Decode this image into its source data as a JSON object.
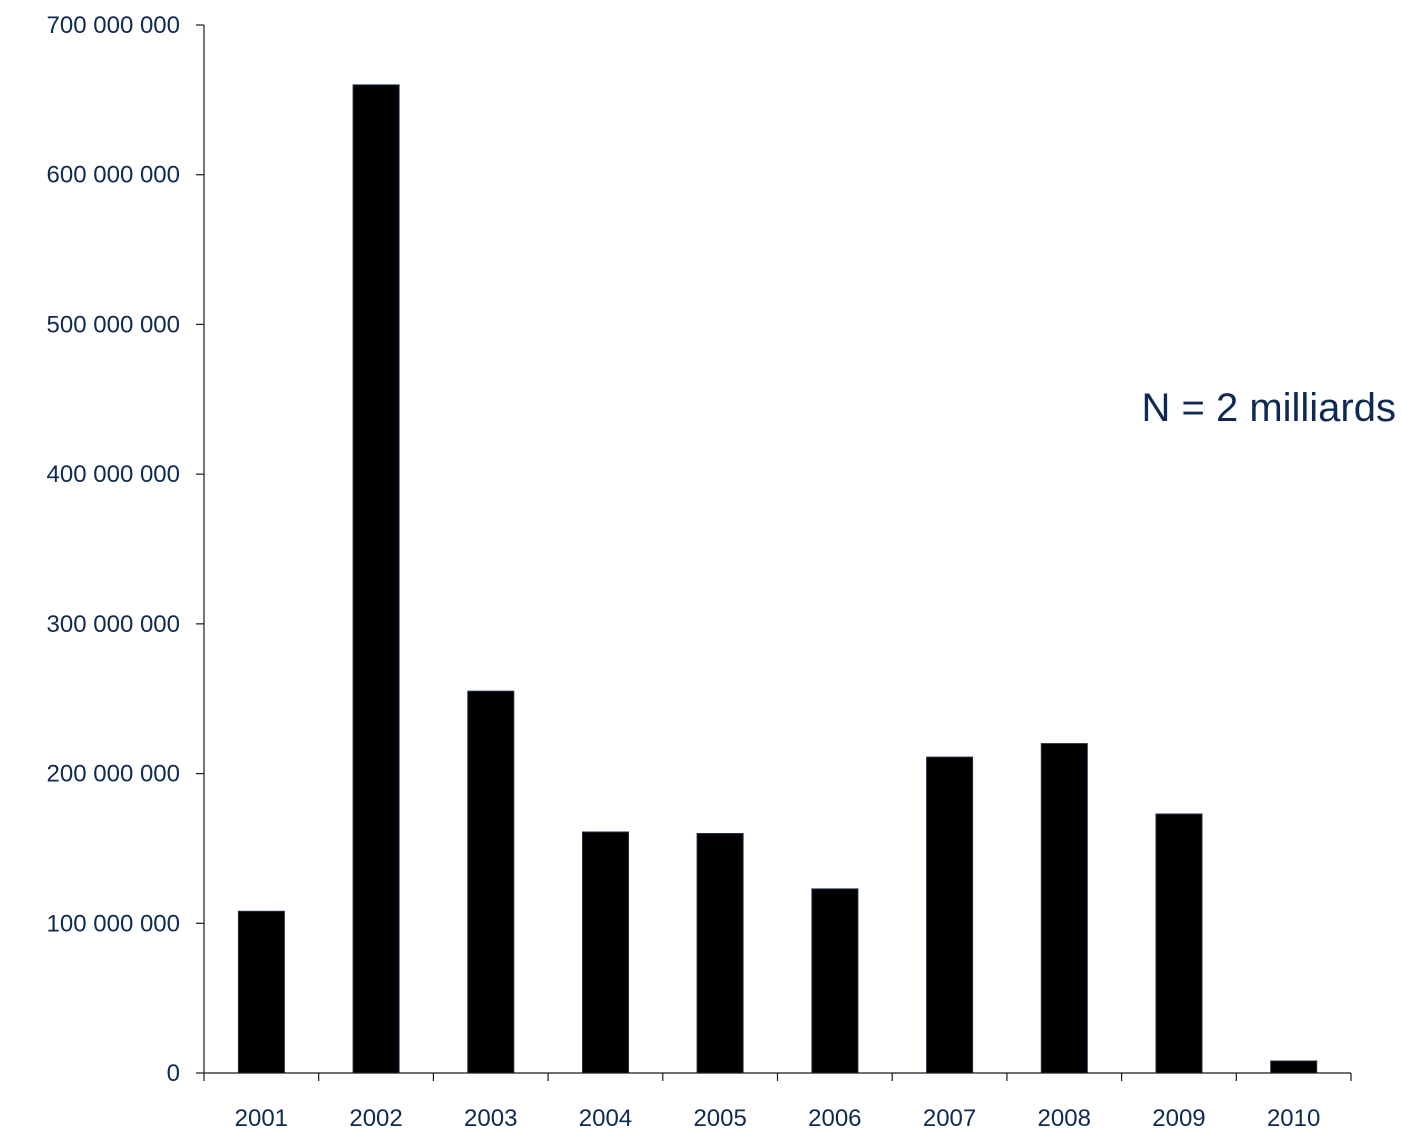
{
  "chart_data": {
    "type": "bar",
    "categories": [
      "2001",
      "2002",
      "2003",
      "2004",
      "2005",
      "2006",
      "2007",
      "2008",
      "2009",
      "2010"
    ],
    "values": [
      108000000,
      660000000,
      255000000,
      161000000,
      160000000,
      123000000,
      211000000,
      220000000,
      173000000,
      8000000
    ],
    "ylim": [
      0,
      700000000
    ],
    "yticks": [
      0,
      100000000,
      200000000,
      300000000,
      400000000,
      500000000,
      600000000,
      700000000
    ],
    "ytick_labels": [
      "0",
      "100 000 000",
      "200 000 000",
      "300 000 000",
      "400 000 000",
      "500 000 000",
      "600 000 000",
      "700 000 000"
    ],
    "annotation": "N = 2 milliards",
    "grid": false,
    "legend": "none",
    "colors": {
      "bar_fill": "#000000",
      "axis": "#1a1a1a",
      "text": "#0f2a52"
    }
  }
}
